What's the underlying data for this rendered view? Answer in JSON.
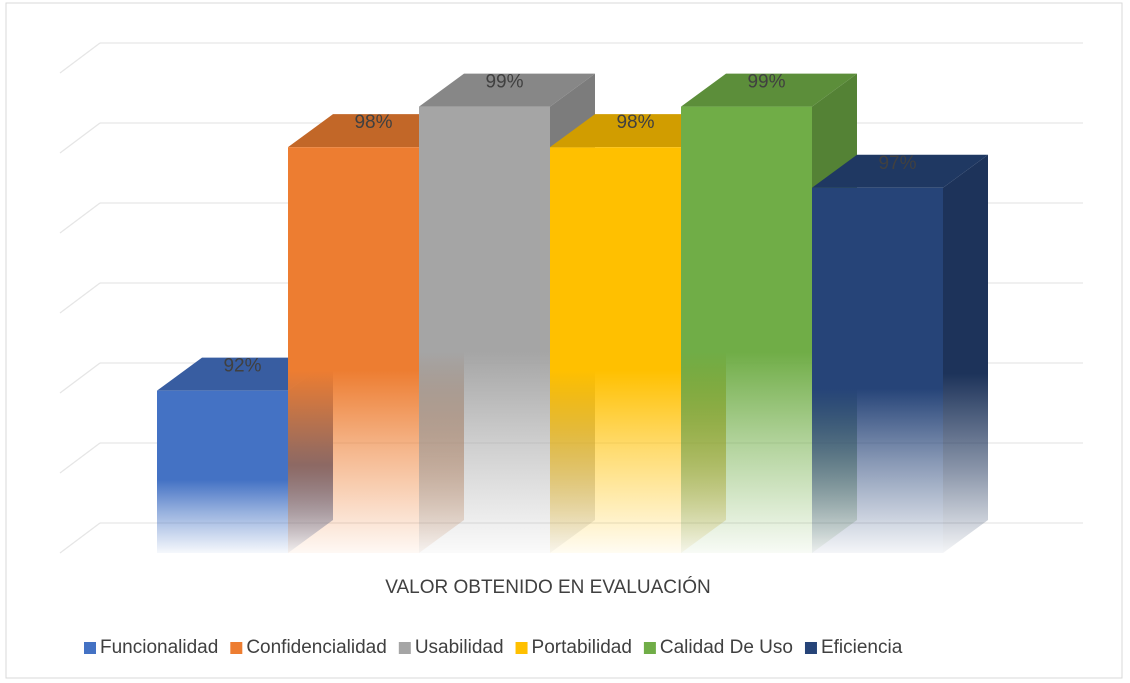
{
  "chart_data": {
    "type": "bar3d",
    "x_label": "VALOR OBTENIDO EN EVALUACIÓN",
    "categories": [
      "Funcionalidad",
      "Confidencialidad",
      "Usabilidad",
      "Portabilidad",
      "Calidad De Uso",
      "Eficiencia"
    ],
    "values": [
      92,
      98,
      99,
      98,
      99,
      97
    ],
    "value_labels": [
      "92%",
      "98%",
      "99%",
      "98%",
      "99%",
      "97%"
    ],
    "colors": [
      "#4472c4",
      "#ed7d31",
      "#a5a5a5",
      "#ffc000",
      "#70ad47",
      "#264478"
    ],
    "ylim": [
      88,
      100
    ],
    "yticks": [
      88,
      90,
      92,
      94,
      96,
      98,
      100
    ],
    "grid": true,
    "legend": "bottom"
  }
}
